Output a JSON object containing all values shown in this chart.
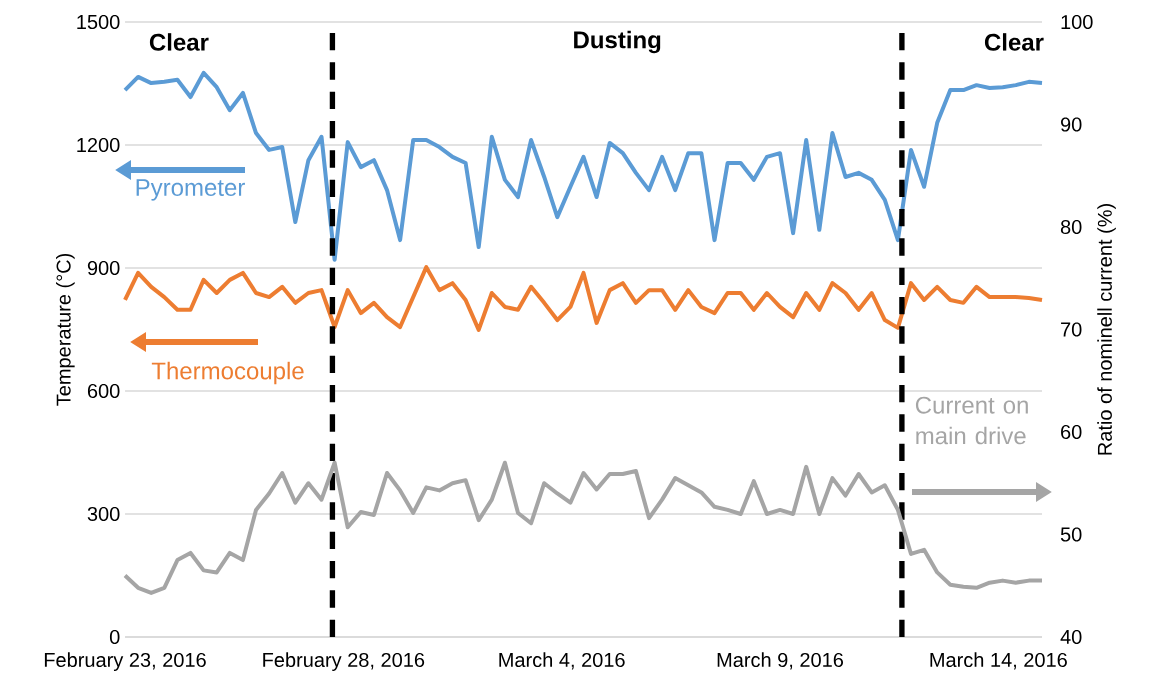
{
  "chart_data": {
    "type": "line",
    "ylabel": "Temperature (°C)",
    "y2label": "Ratio of nominell current (%)",
    "annotations": [
      "Clear",
      "Dusting",
      "Clear"
    ],
    "x": [
      "2016-02-23T00:00",
      "2016-02-23T07:12",
      "2016-02-23T14:24",
      "2016-02-23T21:36",
      "2016-02-24T04:48",
      "2016-02-24T12:00",
      "2016-02-24T19:12",
      "2016-02-25T02:24",
      "2016-02-25T09:36",
      "2016-02-25T16:48",
      "2016-02-26T00:00",
      "2016-02-26T07:12",
      "2016-02-26T14:24",
      "2016-02-26T21:36",
      "2016-02-27T04:48",
      "2016-02-27T12:00",
      "2016-02-27T19:12",
      "2016-02-28T02:24",
      "2016-02-28T09:36",
      "2016-02-28T16:48",
      "2016-02-29T00:00",
      "2016-02-29T07:12",
      "2016-02-29T14:24",
      "2016-02-29T21:36",
      "2016-03-01T04:48",
      "2016-03-01T12:00",
      "2016-03-01T19:12",
      "2016-03-02T02:24",
      "2016-03-02T09:36",
      "2016-03-02T16:48",
      "2016-03-03T00:00",
      "2016-03-03T07:12",
      "2016-03-03T14:24",
      "2016-03-03T21:36",
      "2016-03-04T04:48",
      "2016-03-04T12:00",
      "2016-03-04T19:12",
      "2016-03-05T02:24",
      "2016-03-05T09:36",
      "2016-03-05T16:48",
      "2016-03-06T00:00",
      "2016-03-06T07:12",
      "2016-03-06T14:24",
      "2016-03-06T21:36",
      "2016-03-07T04:48",
      "2016-03-07T12:00",
      "2016-03-07T19:12",
      "2016-03-08T02:24",
      "2016-03-08T09:36",
      "2016-03-08T16:48",
      "2016-03-09T00:00",
      "2016-03-09T07:12",
      "2016-03-09T14:24",
      "2016-03-09T21:36",
      "2016-03-10T04:48",
      "2016-03-10T12:00",
      "2016-03-10T19:12",
      "2016-03-11T02:24",
      "2016-03-11T09:36",
      "2016-03-11T16:48",
      "2016-03-12T00:00",
      "2016-03-12T07:12",
      "2016-03-12T14:24",
      "2016-03-12T21:36",
      "2016-03-13T04:48",
      "2016-03-13T12:00",
      "2016-03-13T19:12",
      "2016-03-14T02:24",
      "2016-03-14T09:36",
      "2016-03-14T16:48",
      "2016-03-15T00:00"
    ],
    "series": [
      {
        "name": "Pyrometer",
        "color": "#5b9bd5",
        "values": [
          1334,
          1366,
          1351,
          1354,
          1359,
          1317,
          1376,
          1341,
          1285,
          1327,
          1229,
          1188,
          1195,
          1012,
          1163,
          1220,
          920,
          1207,
          1146,
          1163,
          1090,
          968,
          1212,
          1212,
          1195,
          1171,
          1156,
          951,
          1220,
          1115,
          1073,
          1212,
          1122,
          1024,
          1098,
          1171,
          1073,
          1205,
          1180,
          1132,
          1090,
          1171,
          1090,
          1180,
          1180,
          968,
          1156,
          1156,
          1115,
          1171,
          1180,
          985,
          1212,
          993,
          1229,
          1122,
          1132,
          1115,
          1066,
          968,
          1188,
          1098,
          1254,
          1334,
          1334,
          1346,
          1339,
          1341,
          1346,
          1354,
          1351
        ]
      },
      {
        "name": "Thermocouple",
        "color": "#ed7d31",
        "values": [
          822,
          888,
          854,
          829,
          798,
          798,
          871,
          839,
          871,
          888,
          839,
          829,
          854,
          815,
          839,
          846,
          756,
          846,
          790,
          815,
          780,
          756,
          829,
          902,
          846,
          863,
          822,
          749,
          839,
          805,
          798,
          854,
          815,
          773,
          805,
          888,
          766,
          846,
          863,
          815,
          846,
          846,
          798,
          846,
          805,
          790,
          839,
          839,
          798,
          839,
          805,
          780,
          839,
          798,
          863,
          839,
          798,
          839,
          773,
          754,
          863,
          822,
          854,
          822,
          815,
          854,
          829,
          829,
          829,
          827,
          822
        ]
      },
      {
        "name": "Current on main drive",
        "color": "#a5a5a5",
        "axis": "y2",
        "values": [
          46.0,
          44.8,
          44.3,
          44.8,
          47.5,
          48.2,
          46.5,
          46.3,
          48.2,
          47.5,
          52.4,
          54.0,
          56.0,
          53.1,
          55.0,
          53.4,
          57.0,
          50.7,
          52.2,
          51.9,
          56.0,
          54.3,
          52.1,
          54.6,
          54.3,
          55.0,
          55.3,
          51.4,
          53.4,
          57.0,
          52.1,
          51.1,
          55.0,
          54.0,
          53.1,
          56.0,
          54.4,
          55.9,
          55.9,
          56.2,
          51.6,
          53.4,
          55.5,
          54.8,
          54.1,
          52.7,
          52.4,
          52.0,
          55.2,
          52.0,
          52.4,
          52.0,
          56.6,
          52.0,
          55.5,
          53.8,
          55.9,
          54.1,
          54.8,
          52.4,
          48.1,
          48.5,
          46.3,
          45.1,
          44.9,
          44.8,
          45.3,
          45.5,
          45.3,
          45.5,
          45.5
        ]
      }
    ],
    "xlim": [
      "2016-02-23",
      "2016-03-15"
    ],
    "xticks": [
      {
        "value": "2016-02-23",
        "label": "February 23, 2016"
      },
      {
        "value": "2016-02-28",
        "label": "February 28, 2016"
      },
      {
        "value": "2016-03-04",
        "label": "March 4, 2016"
      },
      {
        "value": "2016-03-09",
        "label": "March 9, 2016"
      },
      {
        "value": "2016-03-14",
        "label": "March 14, 2016"
      }
    ],
    "ylim": [
      0,
      1500
    ],
    "yticks": [
      0,
      300,
      600,
      900,
      1200,
      1500
    ],
    "y2lim": [
      40,
      100
    ],
    "y2ticks": [
      40,
      50,
      60,
      70,
      80,
      90,
      100
    ],
    "ref_lines": [
      {
        "axis": "x",
        "value": "2016-02-27T18:00",
        "color": "#000000",
        "line_style": "dashed"
      },
      {
        "axis": "x",
        "value": "2016-03-11T19:00",
        "color": "#000000",
        "line_style": "dashed"
      }
    ],
    "grid": "y",
    "legend": "left",
    "line_style": "solid",
    "marker": "none"
  }
}
